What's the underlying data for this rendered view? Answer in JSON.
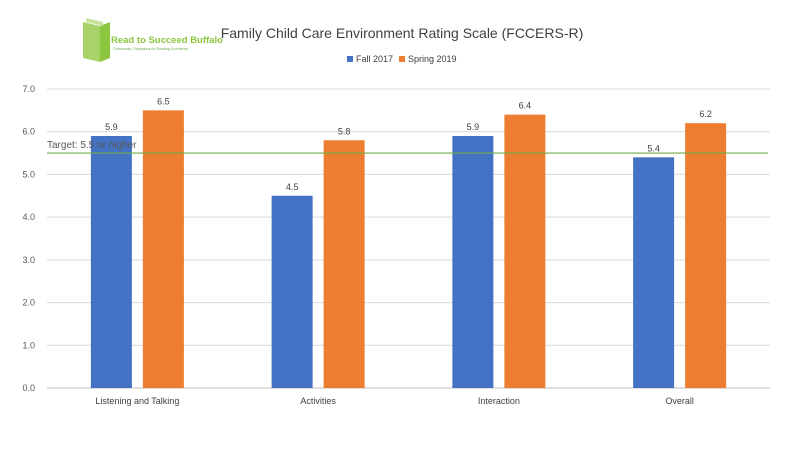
{
  "logo": {
    "text": "Read to Succeed Buffalo",
    "tagline": "Community Champions for Reading Excellence",
    "color": "#8cc63f"
  },
  "chart_data": {
    "type": "bar",
    "title": "Family Child Care Environment Rating Scale (FCCERS-R)",
    "categories": [
      "Listening and Talking",
      "Activities",
      "Interaction",
      "Overall"
    ],
    "series": [
      {
        "name": "Fall 2017",
        "color": "#4472c4",
        "values": [
          5.9,
          4.5,
          5.9,
          5.4
        ]
      },
      {
        "name": "Spring 2019",
        "color": "#ed7d31",
        "values": [
          6.5,
          5.8,
          6.4,
          6.2
        ]
      }
    ],
    "ylim": [
      0,
      7
    ],
    "yticks": [
      "0.0",
      "1.0",
      "2.0",
      "3.0",
      "4.0",
      "5.0",
      "6.0",
      "7.0"
    ],
    "grid": true,
    "legend": "top",
    "target": {
      "value": 5.5,
      "label": "Target: 5.5 or higher",
      "color": "#70ad47"
    }
  }
}
